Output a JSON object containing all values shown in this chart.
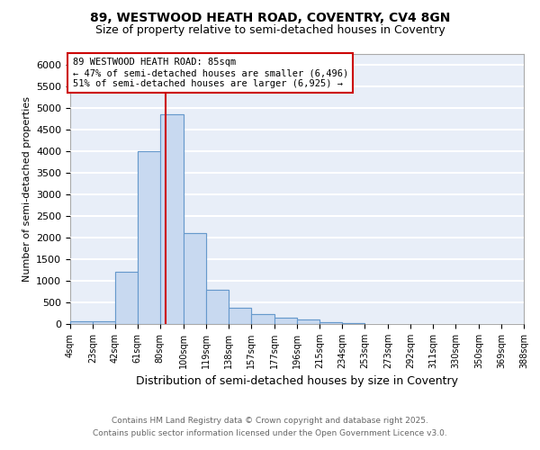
{
  "title1": "89, WESTWOOD HEATH ROAD, COVENTRY, CV4 8GN",
  "title2": "Size of property relative to semi-detached houses in Coventry",
  "xlabel": "Distribution of semi-detached houses by size in Coventry",
  "ylabel": "Number of semi-detached properties",
  "bin_edges": [
    4,
    23,
    42,
    61,
    80,
    100,
    119,
    138,
    157,
    177,
    196,
    215,
    234,
    253,
    273,
    292,
    311,
    330,
    350,
    369,
    388
  ],
  "bar_heights": [
    60,
    60,
    1200,
    4000,
    4850,
    2100,
    800,
    370,
    230,
    150,
    100,
    50,
    20,
    10,
    5,
    5,
    3,
    2,
    1,
    1
  ],
  "bar_color": "#c8d9f0",
  "bar_edge_color": "#6699cc",
  "property_size": 85,
  "red_line_color": "#cc0000",
  "annotation_line1": "89 WESTWOOD HEATH ROAD: 85sqm",
  "annotation_line2": "← 47% of semi-detached houses are smaller (6,496)",
  "annotation_line3": "51% of semi-detached houses are larger (6,925) →",
  "annotation_box_color": "#ffffff",
  "annotation_box_edge": "#cc0000",
  "footer1": "Contains HM Land Registry data © Crown copyright and database right 2025.",
  "footer2": "Contains public sector information licensed under the Open Government Licence v3.0.",
  "ylim_max": 6250,
  "background_color": "#e8eef8",
  "grid_color": "#ffffff",
  "tick_labels": [
    "4sqm",
    "23sqm",
    "42sqm",
    "61sqm",
    "80sqm",
    "100sqm",
    "119sqm",
    "138sqm",
    "157sqm",
    "177sqm",
    "196sqm",
    "215sqm",
    "234sqm",
    "253sqm",
    "273sqm",
    "292sqm",
    "311sqm",
    "330sqm",
    "350sqm",
    "369sqm",
    "388sqm"
  ],
  "yticks": [
    0,
    500,
    1000,
    1500,
    2000,
    2500,
    3000,
    3500,
    4000,
    4500,
    5000,
    5500,
    6000
  ]
}
